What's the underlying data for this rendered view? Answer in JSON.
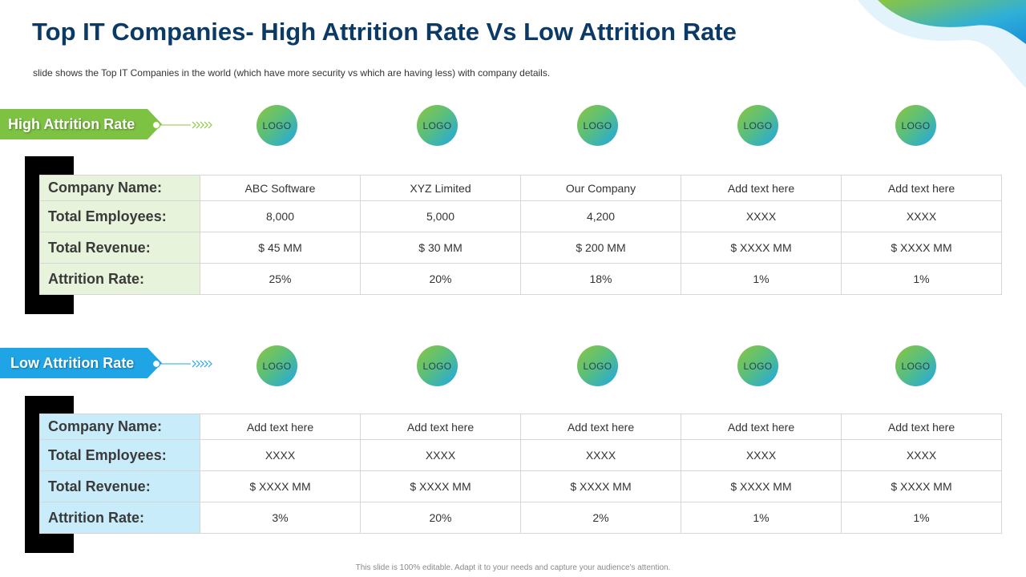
{
  "title": "Top IT Companies- High Attrition Rate Vs Low Attrition Rate",
  "subtitle": "slide shows the Top IT Companies  in the world  (which have  more security vs which are having  less) with company details.",
  "footer": "This slide is 100% editable.  Adapt it to your needs and capture your audience's attention.",
  "colors": {
    "title": "#0b3a66",
    "green": "#7dc242",
    "blue": "#1fa5e6"
  },
  "row_labels": [
    "Company Name:",
    "Total Employees:",
    "Total Revenue:",
    "Attrition Rate:"
  ],
  "logo_label": "LOGO",
  "high": {
    "tag": "High Attrition Rate",
    "companies": [
      {
        "name": "ABC Software",
        "employees": "8,000",
        "revenue": "$ 45 MM",
        "attrition": "25%"
      },
      {
        "name": "XYZ  Limited",
        "employees": "5,000",
        "revenue": "$ 30 MM",
        "attrition": "20%"
      },
      {
        "name": "Our Company",
        "employees": "4,200",
        "revenue": "$ 200 MM",
        "attrition": "18%"
      },
      {
        "name": "Add text here",
        "employees": "XXXX",
        "revenue": "$ XXXX  MM",
        "attrition": "1%"
      },
      {
        "name": "Add text here",
        "employees": "XXXX",
        "revenue": "$ XXXX  MM",
        "attrition": "1%"
      }
    ]
  },
  "low": {
    "tag": "Low Attrition Rate",
    "companies": [
      {
        "name": "Add text here",
        "employees": "XXXX",
        "revenue": "$ XXXX  MM",
        "attrition": "3%"
      },
      {
        "name": "Add text here",
        "employees": "XXXX",
        "revenue": "$ XXXX  MM",
        "attrition": "20%"
      },
      {
        "name": "Add text here",
        "employees": "XXXX",
        "revenue": "$ XXXX  MM",
        "attrition": "2%"
      },
      {
        "name": "Add text here",
        "employees": "XXXX",
        "revenue": "$ XXXX  MM",
        "attrition": "1%"
      },
      {
        "name": "Add text here",
        "employees": "XXXX",
        "revenue": "$ XXXX  MM",
        "attrition": "1%"
      }
    ]
  }
}
